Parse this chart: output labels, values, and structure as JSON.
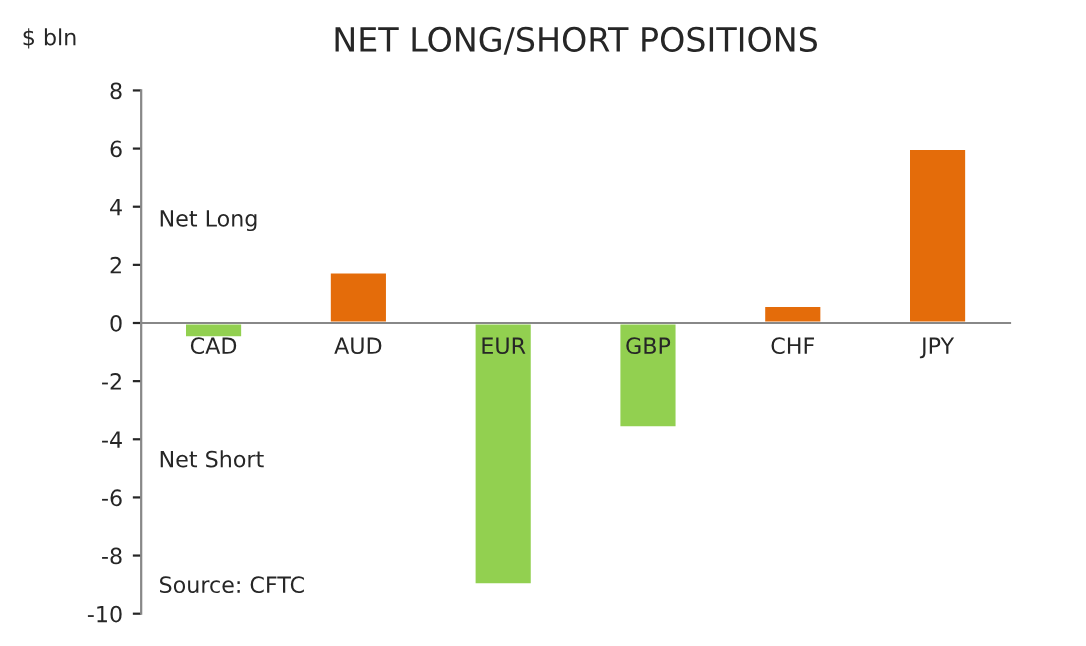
{
  "chart_data": {
    "type": "bar",
    "title": "NET LONG/SHORT POSITIONS",
    "ylabel": "$ bln",
    "categories": [
      "CAD",
      "AUD",
      "EUR",
      "GBP",
      "CHF",
      "JPY"
    ],
    "values": [
      -0.5,
      1.75,
      -9.0,
      -3.6,
      0.6,
      6.0
    ],
    "colors": [
      "#92d050",
      "#e46c0a",
      "#92d050",
      "#92d050",
      "#e46c0a",
      "#e46c0a"
    ],
    "ylim": [
      -10,
      8
    ],
    "yticks": [
      -10,
      -8,
      -6,
      -4,
      -2,
      0,
      2,
      4,
      6,
      8
    ],
    "grid": false,
    "legend": false,
    "annotations": [
      "Net Long",
      "Net Short",
      "Source: CFTC"
    ]
  }
}
